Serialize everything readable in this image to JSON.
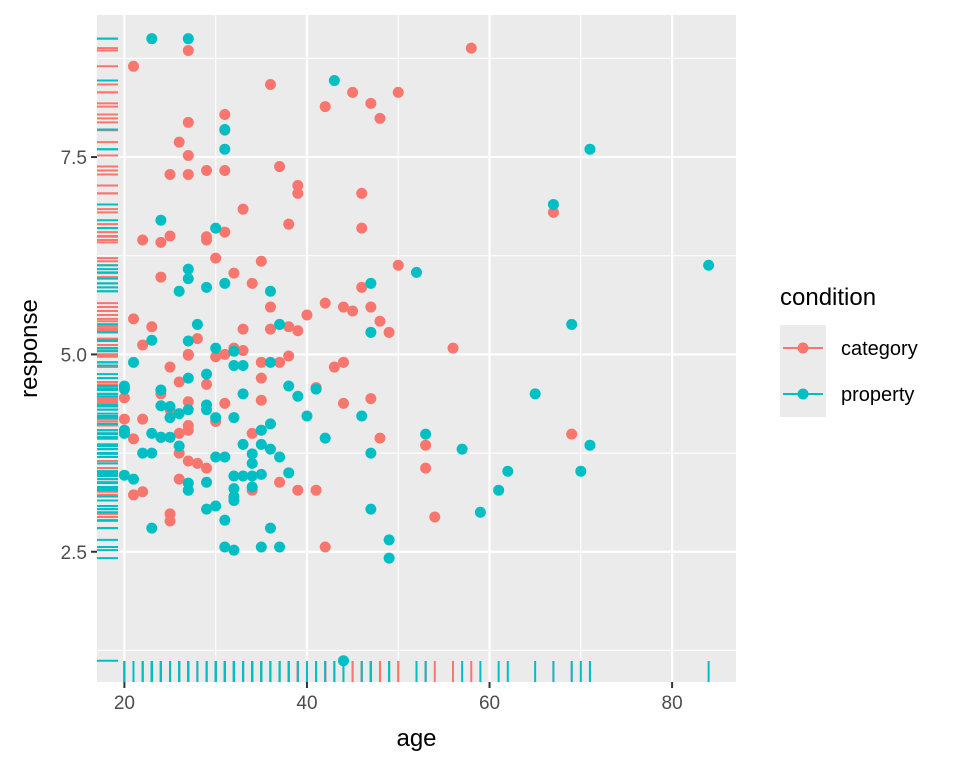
{
  "chart_data": {
    "type": "scatter",
    "xlabel": "age",
    "ylabel": "response",
    "xlim": [
      17,
      87
    ],
    "ylim": [
      0.85,
      9.3
    ],
    "x_ticks": [
      20,
      40,
      60,
      80
    ],
    "y_ticks": [
      2.5,
      5.0,
      7.5
    ],
    "x_tick_labels": [
      "20",
      "40",
      "60",
      "80"
    ],
    "y_tick_labels": [
      "2.5",
      "5.0",
      "7.5"
    ],
    "grid": true,
    "rug": true,
    "legend": {
      "title": "condition",
      "placement": "right",
      "entries": [
        "category",
        "property"
      ]
    },
    "series": [
      {
        "name": "category",
        "color": "#F8766D",
        "points": [
          [
            21,
            8.65
          ],
          [
            27,
            8.85
          ],
          [
            58,
            8.88
          ],
          [
            36,
            8.42
          ],
          [
            45,
            8.32
          ],
          [
            50,
            8.32
          ],
          [
            47,
            8.18
          ],
          [
            42,
            8.14
          ],
          [
            48,
            7.99
          ],
          [
            31,
            8.04
          ],
          [
            27,
            7.94
          ],
          [
            31,
            7.84
          ],
          [
            26,
            7.69
          ],
          [
            27,
            7.52
          ],
          [
            37,
            7.38
          ],
          [
            25,
            7.28
          ],
          [
            27,
            7.28
          ],
          [
            29,
            7.33
          ],
          [
            31,
            7.33
          ],
          [
            39,
            7.14
          ],
          [
            39,
            7.04
          ],
          [
            46,
            7.04
          ],
          [
            33,
            6.84
          ],
          [
            67,
            6.8
          ],
          [
            38,
            6.65
          ],
          [
            46,
            6.6
          ],
          [
            22,
            6.45
          ],
          [
            24,
            6.42
          ],
          [
            25,
            6.5
          ],
          [
            29,
            6.49
          ],
          [
            29,
            6.45
          ],
          [
            31,
            6.55
          ],
          [
            30,
            6.22
          ],
          [
            35,
            6.18
          ],
          [
            50,
            6.13
          ],
          [
            24,
            5.98
          ],
          [
            32,
            6.03
          ],
          [
            34,
            5.9
          ],
          [
            46,
            5.85
          ],
          [
            36,
            5.6
          ],
          [
            42,
            5.65
          ],
          [
            44,
            5.6
          ],
          [
            45,
            5.55
          ],
          [
            47,
            5.6
          ],
          [
            21,
            5.45
          ],
          [
            23,
            5.35
          ],
          [
            33,
            5.32
          ],
          [
            36,
            5.32
          ],
          [
            38,
            5.35
          ],
          [
            39,
            5.3
          ],
          [
            40,
            5.5
          ],
          [
            48,
            5.42
          ],
          [
            49,
            5.28
          ],
          [
            22,
            5.12
          ],
          [
            28,
            5.2
          ],
          [
            32,
            5.08
          ],
          [
            33,
            5.05
          ],
          [
            56,
            5.08
          ],
          [
            30,
            4.97
          ],
          [
            31,
            5.0
          ],
          [
            35,
            4.9
          ],
          [
            37,
            4.9
          ],
          [
            38,
            4.98
          ],
          [
            43,
            4.84
          ],
          [
            44,
            4.9
          ],
          [
            25,
            4.84
          ],
          [
            27,
            5.0
          ],
          [
            27,
            4.99
          ],
          [
            26,
            4.65
          ],
          [
            29,
            4.62
          ],
          [
            35,
            4.7
          ],
          [
            41,
            4.58
          ],
          [
            20,
            4.45
          ],
          [
            24,
            4.5
          ],
          [
            25,
            4.3
          ],
          [
            27,
            4.4
          ],
          [
            31,
            4.38
          ],
          [
            35,
            4.42
          ],
          [
            44,
            4.38
          ],
          [
            47,
            4.44
          ],
          [
            20,
            4.18
          ],
          [
            22,
            4.18
          ],
          [
            26,
            4.0
          ],
          [
            27,
            4.1
          ],
          [
            27,
            4.04
          ],
          [
            30,
            4.15
          ],
          [
            34,
            4.0
          ],
          [
            21,
            3.93
          ],
          [
            24,
            3.95
          ],
          [
            26,
            3.75
          ],
          [
            27,
            3.65
          ],
          [
            28,
            3.62
          ],
          [
            29,
            3.56
          ],
          [
            53,
            3.85
          ],
          [
            48,
            3.94
          ],
          [
            69,
            3.99
          ],
          [
            37,
            3.38
          ],
          [
            26,
            3.42
          ],
          [
            22,
            3.26
          ],
          [
            21,
            3.22
          ],
          [
            34,
            3.28
          ],
          [
            39,
            3.28
          ],
          [
            41,
            3.28
          ],
          [
            53,
            3.56
          ],
          [
            25,
            2.98
          ],
          [
            25,
            2.89
          ],
          [
            54,
            2.94
          ],
          [
            42,
            2.56
          ]
        ]
      },
      {
        "name": "property",
        "color": "#00BFC4",
        "points": [
          [
            23,
            9.0
          ],
          [
            27,
            9.0
          ],
          [
            43,
            8.47
          ],
          [
            31,
            7.85
          ],
          [
            31,
            7.6
          ],
          [
            71,
            7.6
          ],
          [
            67,
            6.9
          ],
          [
            24,
            6.7
          ],
          [
            30,
            6.6
          ],
          [
            27,
            6.08
          ],
          [
            27,
            5.96
          ],
          [
            52,
            6.04
          ],
          [
            84,
            6.13
          ],
          [
            31,
            5.9
          ],
          [
            29,
            5.85
          ],
          [
            26,
            5.8
          ],
          [
            36,
            5.8
          ],
          [
            47,
            5.9
          ],
          [
            27,
            5.17
          ],
          [
            28,
            5.38
          ],
          [
            37,
            5.38
          ],
          [
            47,
            5.28
          ],
          [
            69,
            5.38
          ],
          [
            23,
            5.18
          ],
          [
            30,
            5.08
          ],
          [
            32,
            5.04
          ],
          [
            21,
            4.9
          ],
          [
            32,
            4.86
          ],
          [
            33,
            4.86
          ],
          [
            36,
            4.9
          ],
          [
            27,
            4.7
          ],
          [
            20,
            4.6
          ],
          [
            20,
            4.56
          ],
          [
            24,
            4.55
          ],
          [
            29,
            4.75
          ],
          [
            38,
            4.6
          ],
          [
            41,
            4.56
          ],
          [
            39,
            4.47
          ],
          [
            33,
            4.5
          ],
          [
            65,
            4.5
          ],
          [
            24,
            4.35
          ],
          [
            25,
            4.34
          ],
          [
            27,
            4.3
          ],
          [
            29,
            4.36
          ],
          [
            29,
            4.3
          ],
          [
            30,
            4.2
          ],
          [
            32,
            4.2
          ],
          [
            36,
            4.12
          ],
          [
            25,
            4.2
          ],
          [
            26,
            4.25
          ],
          [
            40,
            4.22
          ],
          [
            46,
            4.22
          ],
          [
            20,
            4.04
          ],
          [
            20,
            4.0
          ],
          [
            23,
            4.0
          ],
          [
            25,
            3.95
          ],
          [
            26,
            3.84
          ],
          [
            24,
            3.95
          ],
          [
            34,
            3.74
          ],
          [
            35,
            4.04
          ],
          [
            42,
            3.94
          ],
          [
            53,
            3.99
          ],
          [
            71,
            3.85
          ],
          [
            57,
            3.8
          ],
          [
            22,
            3.75
          ],
          [
            23,
            3.75
          ],
          [
            30,
            3.7
          ],
          [
            31,
            3.7
          ],
          [
            33,
            3.86
          ],
          [
            35,
            3.86
          ],
          [
            36,
            3.8
          ],
          [
            37,
            3.7
          ],
          [
            34,
            3.62
          ],
          [
            47,
            3.75
          ],
          [
            20,
            3.47
          ],
          [
            21,
            3.42
          ],
          [
            32,
            3.46
          ],
          [
            33,
            3.46
          ],
          [
            34,
            3.46
          ],
          [
            35,
            3.48
          ],
          [
            38,
            3.5
          ],
          [
            62,
            3.52
          ],
          [
            70,
            3.52
          ],
          [
            27,
            3.37
          ],
          [
            27,
            3.28
          ],
          [
            29,
            3.38
          ],
          [
            32,
            3.3
          ],
          [
            32,
            3.2
          ],
          [
            34,
            3.32
          ],
          [
            61,
            3.28
          ],
          [
            32,
            3.15
          ],
          [
            30,
            3.08
          ],
          [
            29,
            3.04
          ],
          [
            47,
            3.04
          ],
          [
            59,
            3.0
          ],
          [
            31,
            2.9
          ],
          [
            23,
            2.8
          ],
          [
            36,
            2.8
          ],
          [
            49,
            2.65
          ],
          [
            31,
            2.56
          ],
          [
            32,
            2.52
          ],
          [
            35,
            2.56
          ],
          [
            37,
            2.56
          ],
          [
            49,
            2.42
          ],
          [
            44,
            1.12
          ]
        ]
      }
    ]
  }
}
